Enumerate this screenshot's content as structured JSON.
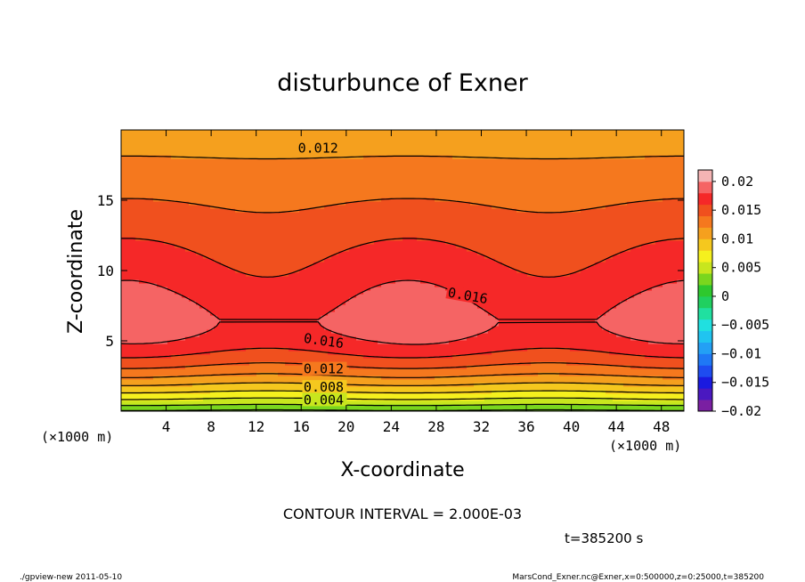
{
  "chart_data": {
    "type": "heatmap",
    "subtype": "filled-contour",
    "title": "disturbunce of Exner",
    "xlabel": "X-coordinate",
    "ylabel": "Z-coordinate",
    "x_unit_left": "(×1000 m)",
    "x_unit_right": "(×1000 m)",
    "xlim": [
      0,
      50
    ],
    "ylim": [
      0,
      20
    ],
    "x_ticks": [
      4,
      8,
      12,
      16,
      20,
      24,
      28,
      32,
      36,
      40,
      44,
      48
    ],
    "y_ticks": [
      5,
      10,
      15
    ],
    "contour_interval_text": "CONTOUR INTERVAL = 2.000E-03",
    "time_text": "t=385200 s",
    "footer_left": "./gpview-new   2011-05-10",
    "footer_right": "MarsCond_Exner.nc@Exner,x=0:500000,z=0:25000,t=385200",
    "colorbar": {
      "tick_labels": [
        "0.02",
        "0.015",
        "0.01",
        "0.005",
        "0",
        "−0.005",
        "−0.01",
        "−0.015",
        "−0.02"
      ],
      "tick_values": [
        0.02,
        0.015,
        0.01,
        0.005,
        0,
        -0.005,
        -0.01,
        -0.015,
        -0.02
      ],
      "levels": [
        {
          "min": -0.02,
          "max": -0.018,
          "color": "#7a1fa2"
        },
        {
          "min": -0.018,
          "max": -0.016,
          "color": "#4a18c0"
        },
        {
          "min": -0.016,
          "max": -0.014,
          "color": "#1a1ae0"
        },
        {
          "min": -0.014,
          "max": -0.012,
          "color": "#1e4cf0"
        },
        {
          "min": -0.012,
          "max": -0.01,
          "color": "#1f78f5"
        },
        {
          "min": -0.01,
          "max": -0.008,
          "color": "#23a0f5"
        },
        {
          "min": -0.008,
          "max": -0.006,
          "color": "#20c4f0"
        },
        {
          "min": -0.006,
          "max": -0.004,
          "color": "#20e0e0"
        },
        {
          "min": -0.004,
          "max": -0.002,
          "color": "#20e0a0"
        },
        {
          "min": -0.002,
          "max": 0.0,
          "color": "#20d060"
        },
        {
          "min": 0.0,
          "max": 0.002,
          "color": "#2ec82e"
        },
        {
          "min": 0.002,
          "max": 0.004,
          "color": "#7ad61e"
        },
        {
          "min": 0.004,
          "max": 0.006,
          "color": "#c8e61e"
        },
        {
          "min": 0.006,
          "max": 0.008,
          "color": "#f5f01e"
        },
        {
          "min": 0.008,
          "max": 0.01,
          "color": "#f5c81e"
        },
        {
          "min": 0.01,
          "max": 0.012,
          "color": "#f5a01e"
        },
        {
          "min": 0.012,
          "max": 0.014,
          "color": "#f5781e"
        },
        {
          "min": 0.014,
          "max": 0.016,
          "color": "#f0501e"
        },
        {
          "min": 0.016,
          "max": 0.018,
          "color": "#f52828"
        },
        {
          "min": 0.018,
          "max": 0.02,
          "color": "#f56464"
        },
        {
          "min": 0.02,
          "max": 0.022,
          "color": "#f5b4b4"
        }
      ]
    },
    "field_model": {
      "description_values": "Exner disturbance increases with height from ~0.002 near z=0 to a maximum (~0.018) around z=5-8 km and decreases to ~0.011 at z=20 km, with weak horizontal undulations.",
      "max_value": 0.0184,
      "peak_height_km": 6.5,
      "surface_value": 0.0015,
      "top_value": 0.0108
    },
    "contour_labels": [
      {
        "text": "0.012",
        "x": 17.5,
        "y": 18.7
      },
      {
        "text": "0.016",
        "x": 30.8,
        "y": 8.2,
        "rotate": 10
      },
      {
        "text": "0.016",
        "x": 18.0,
        "y": 5.0,
        "rotate": 8
      },
      {
        "text": "0.012",
        "x": 18.0,
        "y": 3.0
      },
      {
        "text": "0.008",
        "x": 18.0,
        "y": 1.7
      },
      {
        "text": "0.004",
        "x": 18.0,
        "y": 0.8
      }
    ],
    "grid": false
  }
}
